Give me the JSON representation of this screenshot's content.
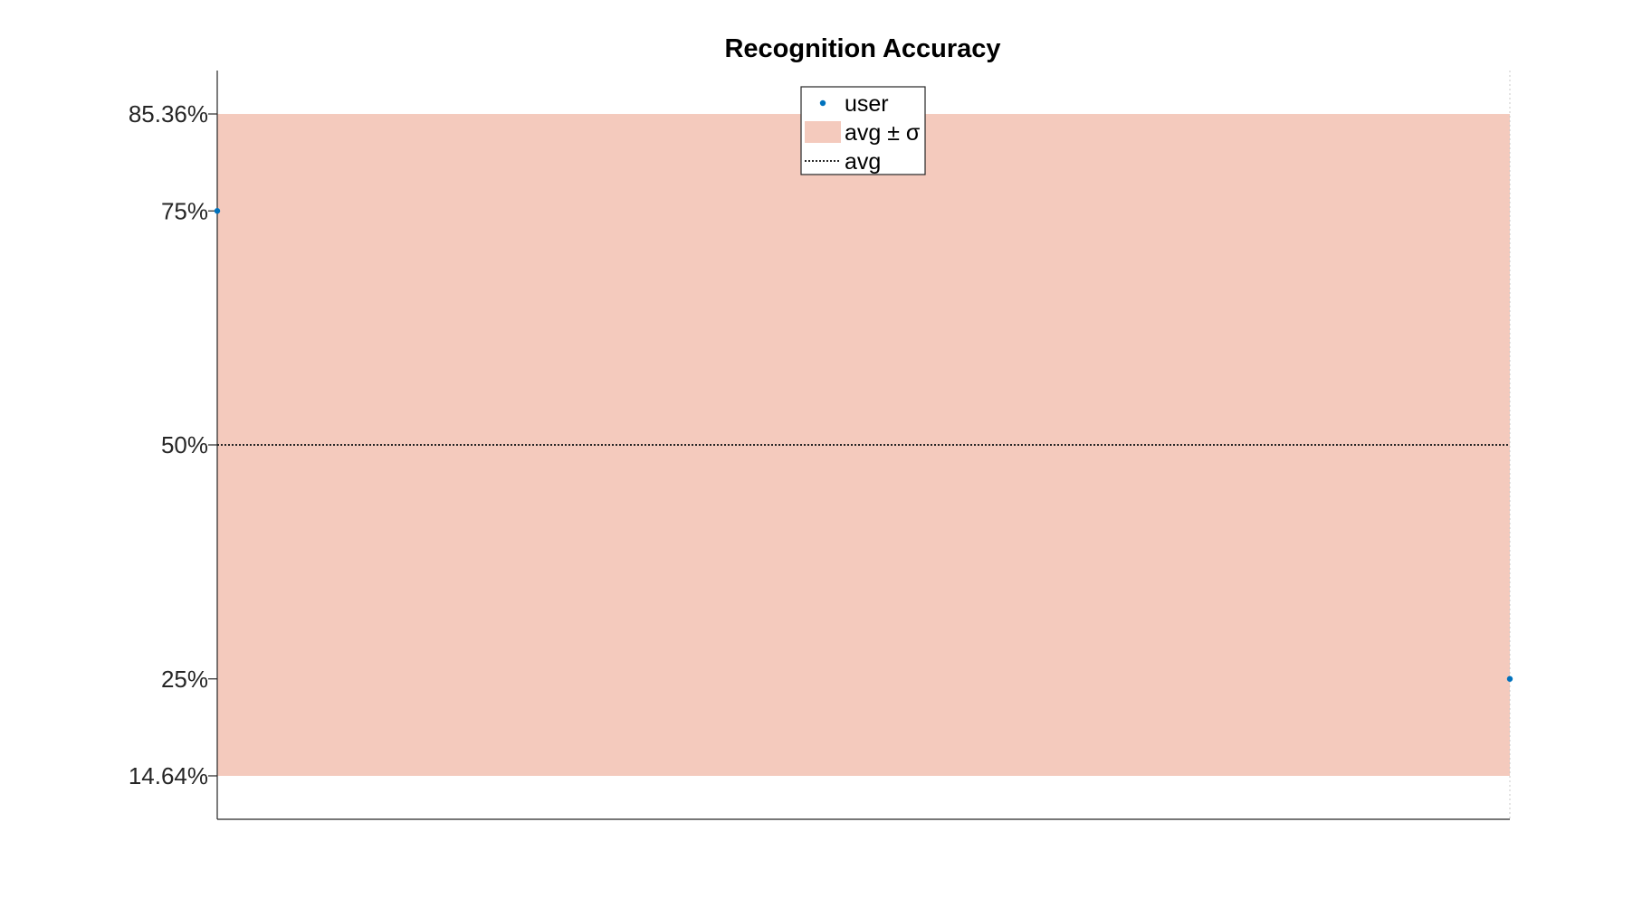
{
  "chart_data": {
    "type": "scatter",
    "title": "Recognition Accuracy",
    "xlabel": "",
    "ylabel": "",
    "ylim": [
      10,
      90
    ],
    "xlim": [
      1,
      2
    ],
    "y_ticks": [
      {
        "value": 14.64,
        "label": "14.64%"
      },
      {
        "value": 25,
        "label": "25%"
      },
      {
        "value": 50,
        "label": "50%"
      },
      {
        "value": 75,
        "label": "75%"
      },
      {
        "value": 85.36,
        "label": "85.36%"
      }
    ],
    "series": [
      {
        "name": "user",
        "kind": "points",
        "x": [
          1,
          2
        ],
        "y": [
          75,
          25
        ]
      }
    ],
    "band": {
      "name": "avg ± σ",
      "lower": 14.64,
      "upper": 85.36
    },
    "avg_line": {
      "name": "avg",
      "value": 50
    },
    "grid": false,
    "legend": {
      "placement": "top-center",
      "entries": [
        {
          "label": "user",
          "symbol": "point"
        },
        {
          "label": "avg ± σ",
          "symbol": "patch"
        },
        {
          "label": "avg",
          "symbol": "dotted-line"
        }
      ]
    },
    "colors": {
      "points": "#0072BD",
      "band": "#F4CABD",
      "avg_line": "#262626",
      "axes": "#262626"
    }
  }
}
